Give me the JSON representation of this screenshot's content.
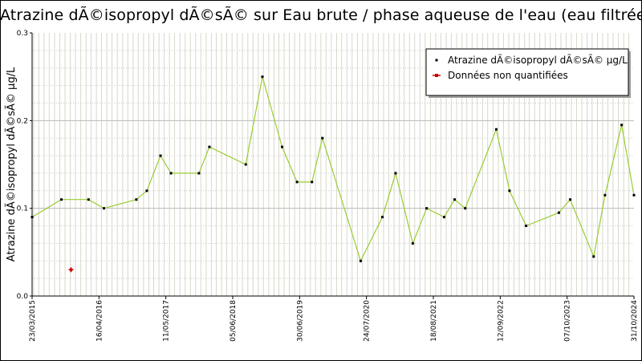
{
  "chart_data": {
    "type": "line",
    "title": "Atrazine dÃ©isopropyl dÃ©sÃ© sur Eau brute / phase aqueuse de l'eau (eau filtrée)",
    "ylabel": "Atrazine dÃ©isopropyl dÃ©sÃ© µg/L",
    "xlabel": "",
    "ylim": [
      0,
      0.3
    ],
    "yticks": [
      "0.0",
      "0.1",
      "0.2",
      "0.3"
    ],
    "xlim": [
      "2015-03-23",
      "2024-10-31"
    ],
    "xtick_labels": [
      {
        "date": "2015-03-23",
        "label": "23/03/2015"
      },
      {
        "date": "2016-04-16",
        "label": "16/04/2016"
      },
      {
        "date": "2017-05-11",
        "label": "11/05/2017"
      },
      {
        "date": "2018-06-05",
        "label": "05/06/2018"
      },
      {
        "date": "2019-06-30",
        "label": "30/06/2019"
      },
      {
        "date": "2020-07-24",
        "label": "24/07/2020"
      },
      {
        "date": "2021-08-18",
        "label": "18/08/2021"
      },
      {
        "date": "2022-09-12",
        "label": "12/09/2022"
      },
      {
        "date": "2023-10-07",
        "label": "07/10/2023"
      },
      {
        "date": "2024-10-31",
        "label": "31/10/2024"
      }
    ],
    "grid": true,
    "legend_position": "top-right",
    "series": [
      {
        "name": "Atrazine dÃ©isopropyl dÃ©sÃ© µg/L",
        "color": "#99cc33",
        "marker_color": "#000000",
        "points": [
          {
            "x": "2015-03-23",
            "y": 0.09
          },
          {
            "x": "2015-09-10",
            "y": 0.11
          },
          {
            "x": "2016-02-15",
            "y": 0.11
          },
          {
            "x": "2016-05-15",
            "y": 0.1
          },
          {
            "x": "2016-11-20",
            "y": 0.11
          },
          {
            "x": "2017-01-20",
            "y": 0.12
          },
          {
            "x": "2017-04-10",
            "y": 0.16
          },
          {
            "x": "2017-06-10",
            "y": 0.14
          },
          {
            "x": "2017-11-20",
            "y": 0.14
          },
          {
            "x": "2018-01-20",
            "y": 0.17
          },
          {
            "x": "2018-08-20",
            "y": 0.15
          },
          {
            "x": "2018-11-25",
            "y": 0.25
          },
          {
            "x": "2019-03-20",
            "y": 0.17
          },
          {
            "x": "2019-06-15",
            "y": 0.13
          },
          {
            "x": "2019-09-10",
            "y": 0.13
          },
          {
            "x": "2019-11-10",
            "y": 0.18
          },
          {
            "x": "2020-06-20",
            "y": 0.04
          },
          {
            "x": "2020-10-25",
            "y": 0.09
          },
          {
            "x": "2021-01-10",
            "y": 0.14
          },
          {
            "x": "2021-04-20",
            "y": 0.06
          },
          {
            "x": "2021-07-10",
            "y": 0.1
          },
          {
            "x": "2021-10-20",
            "y": 0.09
          },
          {
            "x": "2021-12-20",
            "y": 0.11
          },
          {
            "x": "2022-02-20",
            "y": 0.1
          },
          {
            "x": "2022-08-20",
            "y": 0.19
          },
          {
            "x": "2022-11-05",
            "y": 0.12
          },
          {
            "x": "2023-02-10",
            "y": 0.08
          },
          {
            "x": "2023-08-20",
            "y": 0.095
          },
          {
            "x": "2023-10-25",
            "y": 0.11
          },
          {
            "x": "2024-03-10",
            "y": 0.045
          },
          {
            "x": "2024-05-15",
            "y": 0.115
          },
          {
            "x": "2024-08-20",
            "y": 0.195
          },
          {
            "x": "2024-10-31",
            "y": 0.115
          }
        ]
      },
      {
        "name": "Données non quantifiées",
        "color": "#cc0000",
        "marker_color": "#cc0000",
        "points": [
          {
            "x": "2015-11-05",
            "y": 0.03
          }
        ]
      }
    ]
  }
}
